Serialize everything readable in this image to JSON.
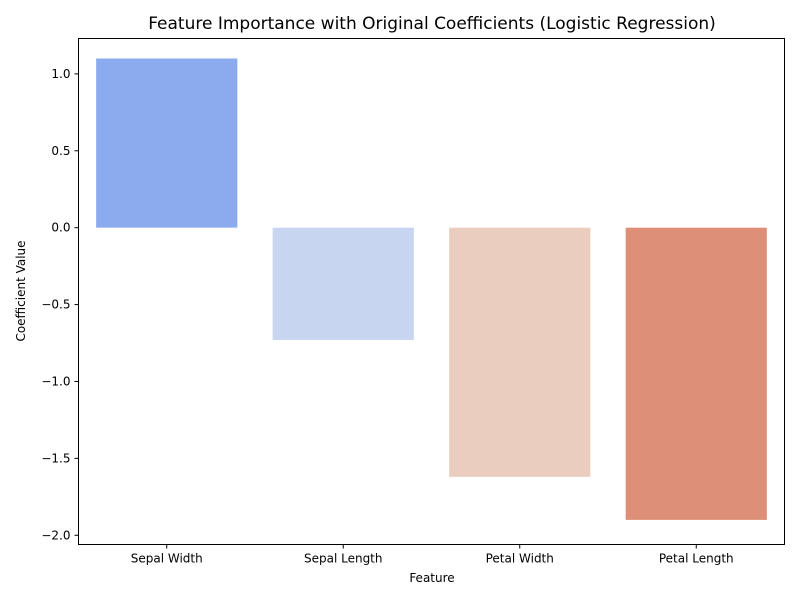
{
  "chart_data": {
    "type": "bar",
    "title": "Feature Importance with Original Coefficients (Logistic Regression)",
    "xlabel": "Feature",
    "ylabel": "Coefficient Value",
    "categories": [
      "Sepal Width",
      "Sepal Length",
      "Petal Width",
      "Petal Length"
    ],
    "values": [
      1.1,
      -0.73,
      -1.62,
      -1.9
    ],
    "colors": [
      "#8caaee",
      "#c8d5f0",
      "#eacdbf",
      "#de8f78"
    ],
    "ylim": [
      -2.06,
      1.23
    ],
    "yticks": [
      1.0,
      0.5,
      0.0,
      -0.5,
      -1.0,
      -1.5,
      -2.0
    ],
    "ytick_labels": [
      "1.0",
      "0.5",
      "0.0",
      "−0.5",
      "−1.0",
      "−1.5",
      "−2.0"
    ],
    "grid": false,
    "legend": "none"
  }
}
